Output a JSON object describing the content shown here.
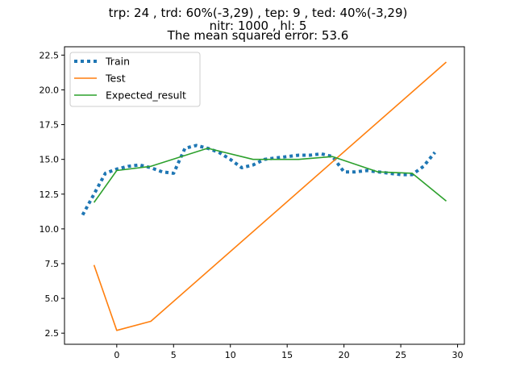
{
  "chart_data": {
    "type": "line",
    "title_lines": [
      "trp: 24 , trd: 60%(-3,29) , tep: 9 , ted: 40%(-3,29)",
      "nitr: 1000 , hl: 5",
      "The mean squared error: 53.6"
    ],
    "xlabel": "",
    "ylabel": "",
    "xlim": [
      -4.6,
      30.6
    ],
    "ylim": [
      1.7,
      23.1
    ],
    "xticks": [
      0,
      5,
      10,
      15,
      20,
      25,
      30
    ],
    "yticks": [
      2.5,
      5.0,
      7.5,
      10.0,
      12.5,
      15.0,
      17.5,
      20.0,
      22.5
    ],
    "ytick_labels": [
      "2.5",
      "5.0",
      "7.5",
      "10.0",
      "12.5",
      "15.0",
      "17.5",
      "20.0",
      "22.5"
    ],
    "legend_position": "top-left",
    "grid": false,
    "series": [
      {
        "name": "Train",
        "color": "#1f77b4",
        "style": "dotted",
        "x": [
          -3,
          -2,
          -1,
          0,
          1,
          2,
          3,
          4,
          5,
          6,
          7,
          8,
          9,
          10,
          11,
          12,
          13,
          14,
          15,
          16,
          17,
          18,
          19,
          20,
          21,
          22,
          23,
          24,
          25,
          26,
          27,
          28
        ],
        "y": [
          11.0,
          12.5,
          14.0,
          14.3,
          14.5,
          14.6,
          14.4,
          14.1,
          14.0,
          15.8,
          16.0,
          15.8,
          15.5,
          15.0,
          14.4,
          14.6,
          15.0,
          15.1,
          15.2,
          15.3,
          15.3,
          15.4,
          15.2,
          14.1,
          14.1,
          14.2,
          14.1,
          14.0,
          13.9,
          13.9,
          14.5,
          15.5
        ]
      },
      {
        "name": "Test",
        "color": "#ff7f0e",
        "style": "solid",
        "x": [
          -2,
          0,
          3,
          29
        ],
        "y": [
          7.4,
          2.7,
          3.35,
          22.0
        ]
      },
      {
        "name": "Expected_result",
        "color": "#2ca02c",
        "style": "solid",
        "x": [
          -2,
          0,
          3,
          8,
          12,
          16,
          19,
          23,
          26,
          29
        ],
        "y": [
          11.9,
          14.2,
          14.5,
          15.8,
          15.0,
          15.0,
          15.2,
          14.1,
          14.0,
          12.0
        ]
      }
    ]
  }
}
